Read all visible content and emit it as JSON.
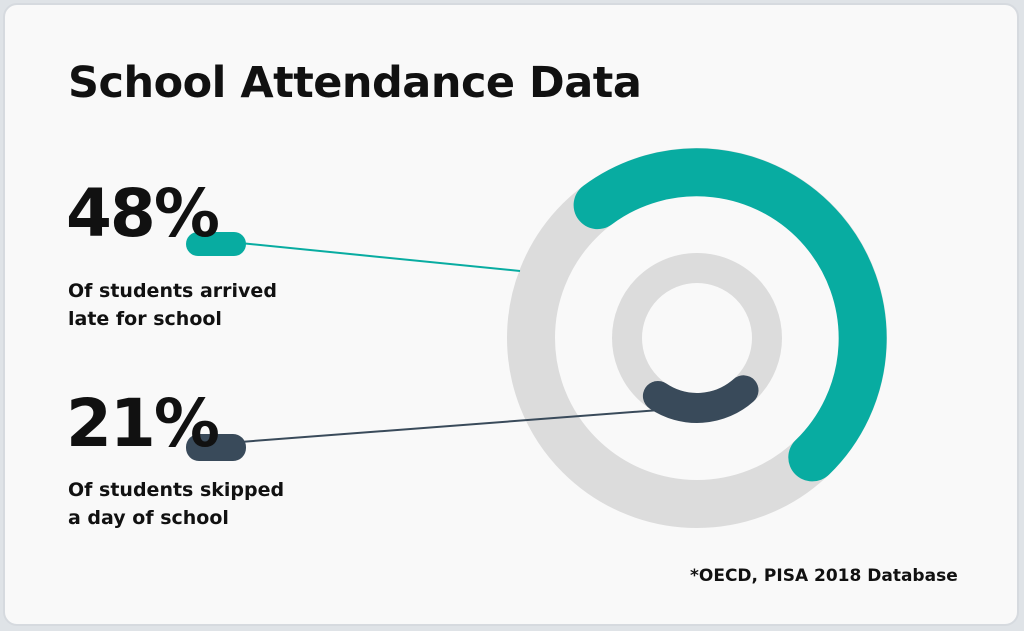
{
  "title": "School Attendance Data",
  "source": "*OECD, PISA 2018 Database",
  "colors": {
    "teal": "#08aca1",
    "slate": "#394a5a",
    "track": "#dcdcdc",
    "background": "#f9f9f9"
  },
  "chart_data": {
    "type": "donut",
    "rings": [
      {
        "ring": "outer",
        "value": 48,
        "label": "48%",
        "description": "Of students arrived\nlate for school",
        "color": "#08aca1"
      },
      {
        "ring": "inner",
        "value": 21,
        "label": "21%",
        "description": "Of students skipped\na day of school",
        "color": "#394a5a"
      }
    ],
    "max": 100
  }
}
